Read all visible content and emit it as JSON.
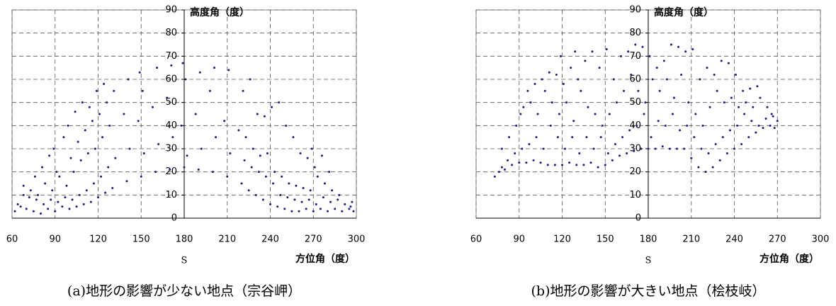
{
  "chart_data": [
    {
      "type": "scatter",
      "title": "高度角（度）",
      "xlabel": "方位角（度）",
      "annotation": "S",
      "caption": "(a)地形の影響が少ない地点（宗谷岬）",
      "color": "#1a1a80",
      "xlim": [
        60,
        300
      ],
      "ylim": [
        0,
        90
      ],
      "xticks": [
        60,
        90,
        120,
        150,
        180,
        210,
        240,
        270,
        300
      ],
      "yticks": [
        0,
        10,
        20,
        30,
        40,
        50,
        60,
        70,
        80,
        90
      ],
      "grid": true,
      "x": [
        62,
        64,
        66,
        68,
        70,
        72,
        68,
        75,
        77,
        73,
        76,
        80,
        82,
        78,
        81,
        85,
        87,
        83,
        86,
        90,
        92,
        88,
        91,
        89,
        95,
        97,
        93,
        96,
        100,
        102,
        98,
        101,
        99,
        105,
        107,
        103,
        106,
        104,
        110,
        112,
        108,
        111,
        109,
        115,
        117,
        113,
        116,
        114,
        120,
        122,
        118,
        121,
        119,
        125,
        127,
        123,
        126,
        124,
        130,
        132,
        128,
        131,
        140,
        142,
        138,
        141,
        150,
        152,
        148,
        151,
        149,
        160,
        162,
        158,
        161,
        170,
        172,
        168,
        171,
        180,
        182,
        178,
        181,
        179,
        190,
        192,
        188,
        191,
        200,
        202,
        198,
        201,
        210,
        212,
        208,
        211,
        220,
        222,
        218,
        221,
        225,
        227,
        223,
        226,
        230,
        232,
        228,
        231,
        235,
        237,
        233,
        236,
        240,
        242,
        238,
        241,
        245,
        247,
        243,
        246,
        250,
        252,
        248,
        251,
        255,
        257,
        253,
        256,
        260,
        262,
        258,
        261,
        265,
        267,
        263,
        266,
        270,
        272,
        268,
        271,
        269,
        275,
        277,
        273,
        276,
        280,
        282,
        278,
        281,
        285,
        287,
        283,
        290,
        292,
        288,
        295,
        297,
        298,
        296
      ],
      "values": [
        3,
        6,
        5,
        10,
        4,
        9,
        14,
        3,
        8,
        12,
        18,
        2,
        6,
        10,
        22,
        4,
        8,
        15,
        27,
        3,
        7,
        12,
        20,
        30,
        5,
        9,
        18,
        35,
        4,
        8,
        14,
        26,
        40,
        5,
        10,
        20,
        33,
        46,
        6,
        12,
        25,
        38,
        50,
        7,
        15,
        28,
        42,
        48,
        9,
        18,
        30,
        45,
        55,
        11,
        22,
        35,
        50,
        58,
        13,
        26,
        40,
        55,
        16,
        30,
        45,
        60,
        18,
        28,
        42,
        55,
        63,
        20,
        32,
        48,
        65,
        21,
        35,
        52,
        66,
        22,
        27,
        40,
        60,
        67,
        21,
        30,
        45,
        63,
        20,
        35,
        55,
        65,
        18,
        28,
        42,
        64,
        15,
        25,
        38,
        55,
        12,
        22,
        35,
        60,
        10,
        20,
        30,
        45,
        8,
        18,
        27,
        44,
        6,
        15,
        28,
        48,
        5,
        10,
        20,
        50,
        4,
        9,
        18,
        40,
        3,
        8,
        15,
        35,
        3,
        7,
        14,
        28,
        4,
        8,
        13,
        26,
        3,
        6,
        12,
        22,
        30,
        4,
        9,
        18,
        27,
        3,
        7,
        15,
        20,
        4,
        8,
        12,
        3,
        6,
        10,
        4,
        7,
        3,
        5
      ]
    },
    {
      "type": "scatter",
      "title": "高度角（度）",
      "xlabel": "方位角（度）",
      "annotation": "S",
      "caption": "(b)地形の影響が大きい地点（桧枝岐）",
      "color": "#1a1a80",
      "xlim": [
        60,
        300
      ],
      "ylim": [
        0,
        90
      ],
      "xticks": [
        60,
        90,
        120,
        150,
        180,
        210,
        240,
        270,
        300
      ],
      "yticks": [
        0,
        10,
        20,
        30,
        40,
        50,
        60,
        70,
        80,
        90
      ],
      "grid": true,
      "x": [
        73,
        76,
        78,
        80,
        82,
        78,
        85,
        87,
        83,
        90,
        92,
        88,
        91,
        95,
        97,
        93,
        96,
        100,
        102,
        98,
        101,
        105,
        107,
        103,
        106,
        110,
        112,
        108,
        111,
        115,
        117,
        113,
        116,
        120,
        122,
        118,
        121,
        119,
        125,
        127,
        123,
        126,
        130,
        132,
        128,
        131,
        129,
        135,
        137,
        133,
        136,
        140,
        142,
        138,
        141,
        145,
        147,
        143,
        146,
        150,
        152,
        148,
        151,
        155,
        157,
        153,
        156,
        160,
        162,
        158,
        161,
        165,
        167,
        163,
        166,
        170,
        172,
        168,
        171,
        175,
        177,
        173,
        176,
        180,
        182,
        178,
        181,
        185,
        187,
        183,
        186,
        190,
        192,
        188,
        191,
        195,
        197,
        193,
        196,
        200,
        202,
        198,
        201,
        205,
        207,
        203,
        206,
        210,
        212,
        208,
        211,
        215,
        217,
        213,
        216,
        220,
        222,
        218,
        221,
        225,
        227,
        223,
        226,
        230,
        232,
        228,
        231,
        235,
        237,
        233,
        236,
        240,
        242,
        238,
        241,
        245,
        247,
        243,
        246,
        250,
        252,
        248,
        251,
        255,
        257,
        253,
        256,
        260,
        262,
        258,
        265,
        267,
        263,
        268,
        270,
        266
      ],
      "values": [
        18,
        20,
        22,
        21,
        25,
        30,
        23,
        28,
        35,
        24,
        30,
        40,
        45,
        24,
        32,
        48,
        55,
        25,
        35,
        50,
        58,
        24,
        30,
        45,
        60,
        23,
        40,
        55,
        63,
        23,
        35,
        50,
        62,
        23,
        30,
        45,
        58,
        70,
        24,
        35,
        50,
        65,
        23,
        28,
        42,
        60,
        72,
        23,
        35,
        55,
        68,
        24,
        30,
        48,
        72,
        22,
        35,
        45,
        65,
        23,
        28,
        40,
        73,
        25,
        32,
        45,
        60,
        27,
        35,
        50,
        70,
        28,
        38,
        55,
        72,
        29,
        40,
        62,
        75,
        30,
        45,
        55,
        74,
        30,
        35,
        50,
        70,
        30,
        42,
        60,
        65,
        31,
        40,
        55,
        68,
        30,
        45,
        60,
        75,
        30,
        38,
        52,
        74,
        30,
        40,
        62,
        72,
        26,
        35,
        50,
        73,
        22,
        30,
        45,
        60,
        20,
        28,
        40,
        65,
        22,
        32,
        48,
        62,
        25,
        35,
        55,
        68,
        28,
        38,
        50,
        67,
        30,
        40,
        52,
        62,
        32,
        45,
        48,
        55,
        35,
        42,
        50,
        56,
        37,
        40,
        48,
        57,
        39,
        43,
        52,
        40,
        44,
        48,
        39,
        42,
        45
      ]
    }
  ]
}
